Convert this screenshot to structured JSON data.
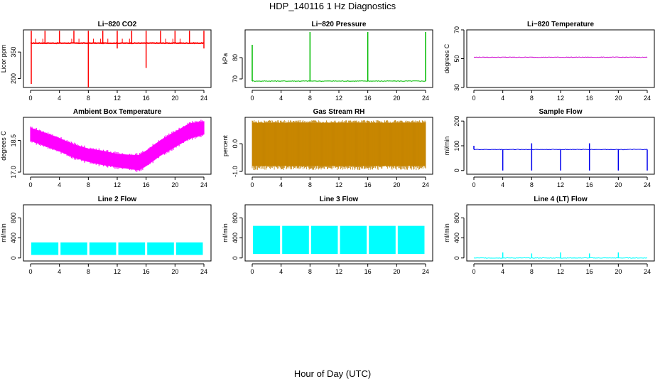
{
  "figure": {
    "title": "HDP_140116  1 Hz Diagnostics",
    "xlabel": "Hour of Day (UTC)"
  },
  "chart_data": [
    {
      "type": "line",
      "title": "Li−820 CO2",
      "xlabel": "",
      "ylabel": "Licor ppm",
      "color": "#ff0000",
      "xlim": [
        0,
        24
      ],
      "ylim": [
        150,
        475
      ],
      "xticks": [
        0,
        4,
        8,
        12,
        16,
        20,
        24
      ],
      "yticks": [
        200,
        350
      ],
      "series": [
        {
          "baseline": 400,
          "spikes_up": [
            [
              0.1,
              470
            ],
            [
              2,
              470
            ],
            [
              4,
              470
            ],
            [
              6,
              470
            ],
            [
              8,
              470
            ],
            [
              10,
              470
            ],
            [
              12,
              470
            ],
            [
              14,
              470
            ],
            [
              16,
              470
            ],
            [
              18,
              470
            ],
            [
              20,
              470
            ],
            [
              22,
              470
            ],
            [
              24,
              470
            ]
          ],
          "spikes_down": [
            [
              0.1,
              170
            ],
            [
              8,
              150
            ],
            [
              16,
              260
            ],
            [
              12,
              370
            ],
            [
              24,
              370
            ]
          ]
        }
      ]
    },
    {
      "type": "line",
      "title": "Li−820 Pressure",
      "xlabel": "",
      "ylabel": "kPa",
      "color": "#00bb00",
      "xlim": [
        0,
        24
      ],
      "ylim": [
        66,
        93
      ],
      "xticks": [
        0,
        4,
        8,
        12,
        16,
        20,
        24
      ],
      "yticks": [
        70,
        80
      ],
      "series": [
        {
          "baseline": 69,
          "spikes_up": [
            [
              0,
              86
            ],
            [
              8,
              92
            ],
            [
              16,
              92
            ],
            [
              24,
              92
            ]
          ]
        }
      ]
    },
    {
      "type": "line",
      "title": "Li−820 Temperature",
      "xlabel": "",
      "ylabel": "degrees C",
      "color": "#cc00cc",
      "xlim": [
        0,
        24
      ],
      "ylim": [
        30,
        70
      ],
      "xticks": [
        0,
        4,
        8,
        12,
        16,
        20,
        24
      ],
      "yticks": [
        30,
        50,
        70
      ],
      "series": [
        {
          "baseline": 51
        }
      ]
    },
    {
      "type": "area",
      "title": "Ambient Box Temperature",
      "xlabel": "",
      "ylabel": "degrees C",
      "color": "#ff00ff",
      "xlim": [
        0,
        24
      ],
      "ylim": [
        16.9,
        19.6
      ],
      "xticks": [
        0,
        4,
        8,
        12,
        16,
        20,
        24
      ],
      "yticks": [
        17.0,
        18.5
      ],
      "series": [
        {
          "x": [
            0,
            2,
            4,
            6,
            8,
            10,
            12,
            14,
            15,
            16,
            18,
            20,
            22,
            24
          ],
          "upper": [
            19.1,
            18.85,
            18.6,
            18.3,
            18.1,
            18.0,
            17.85,
            17.8,
            17.8,
            18.0,
            18.5,
            18.9,
            19.3,
            19.4
          ],
          "lower": [
            18.5,
            18.25,
            18.0,
            17.7,
            17.5,
            17.35,
            17.25,
            17.15,
            17.1,
            17.3,
            17.8,
            18.2,
            18.6,
            18.8
          ]
        }
      ]
    },
    {
      "type": "area",
      "title": "Gas Stream RH",
      "xlabel": "",
      "ylabel": "percent",
      "color": "#e6a000",
      "xlim": [
        0,
        24
      ],
      "ylim": [
        -1.1,
        0.95
      ],
      "xticks": [
        0,
        4,
        8,
        12,
        16,
        20,
        24
      ],
      "yticks": [
        -1.0,
        0.0
      ],
      "series": [
        {
          "band_upper": 0.75,
          "band_lower": -0.8,
          "outer_upper": 0.85,
          "outer_lower": -0.95
        }
      ]
    },
    {
      "type": "line",
      "title": "Sample Flow",
      "xlabel": "",
      "ylabel": "ml/min",
      "color": "#0000ee",
      "xlim": [
        0,
        24
      ],
      "ylim": [
        -15,
        215
      ],
      "xticks": [
        0,
        4,
        8,
        12,
        16,
        20,
        24
      ],
      "yticks": [
        0,
        100,
        200
      ],
      "series": [
        {
          "baseline": 85,
          "spikes_up": [
            [
              0,
              100
            ],
            [
              8,
              110
            ],
            [
              16,
              110
            ]
          ],
          "spikes_down": [
            [
              4,
              0
            ],
            [
              8,
              0
            ],
            [
              12,
              0
            ],
            [
              16,
              0
            ],
            [
              20,
              0
            ],
            [
              24,
              0
            ]
          ]
        }
      ]
    },
    {
      "type": "area",
      "title": "Line 2 Flow",
      "xlabel": "",
      "ylabel": "ml/min",
      "color": "#00ffff",
      "xlim": [
        0,
        24
      ],
      "ylim": [
        -60,
        1060
      ],
      "xticks": [
        0,
        4,
        8,
        12,
        16,
        20,
        24
      ],
      "yticks": [
        0,
        400,
        800
      ],
      "series": [
        {
          "x_start": 0.1,
          "x_end": 24,
          "upper": 310,
          "lower": 60,
          "gaps": [
            4,
            8,
            12,
            16,
            20
          ]
        }
      ]
    },
    {
      "type": "area",
      "title": "Line 3 Flow",
      "xlabel": "",
      "ylabel": "ml/min",
      "color": "#00ffff",
      "xlim": [
        0,
        24
      ],
      "ylim": [
        -60,
        1060
      ],
      "xticks": [
        0,
        4,
        8,
        12,
        16,
        20,
        24
      ],
      "yticks": [
        0,
        400,
        800
      ],
      "series": [
        {
          "x_start": 0.1,
          "x_end": 24,
          "upper": 640,
          "lower": 80,
          "gaps": [
            4,
            8,
            12,
            16,
            20
          ]
        }
      ]
    },
    {
      "type": "line",
      "title": "Line 4 (LT) Flow",
      "xlabel": "",
      "ylabel": "ml/min",
      "color": "#00ffff",
      "xlim": [
        0,
        24
      ],
      "ylim": [
        -60,
        1060
      ],
      "xticks": [
        0,
        4,
        8,
        12,
        16,
        20,
        24
      ],
      "yticks": [
        0,
        400,
        800
      ],
      "series": [
        {
          "baseline": 0,
          "spikes_up": [
            [
              4,
              110
            ],
            [
              8,
              90
            ],
            [
              12,
              110
            ],
            [
              16,
              90
            ],
            [
              20,
              110
            ]
          ]
        }
      ]
    }
  ]
}
